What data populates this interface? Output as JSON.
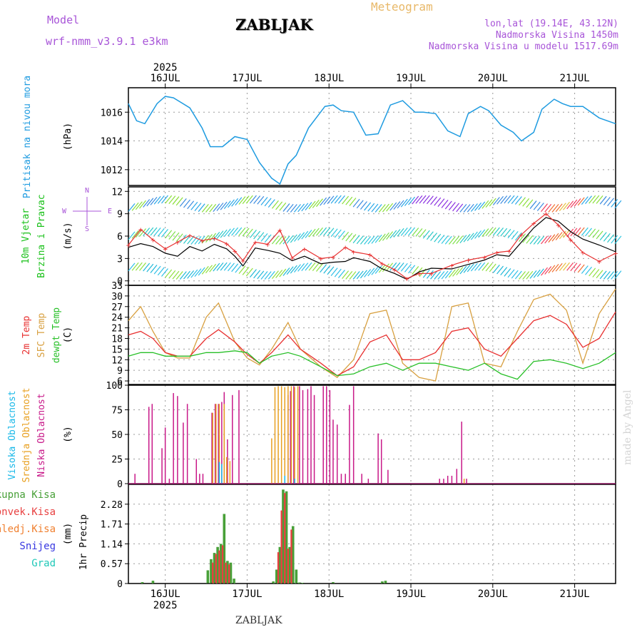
{
  "header": {
    "model_label": "Model",
    "model_name": "wrf-nmm_v3.9.1  e3km",
    "station": "ZABLJAK",
    "meteogram": "Meteogram",
    "lonlat": "lon,lat (19.14E, 43.12N)",
    "elevation": "Nadmorska Visina 1450m",
    "model_elevation": "Nadmorska Visina u modelu 1517.69m"
  },
  "footer": {
    "station": "ZABLJAK",
    "credit": "made by Angel"
  },
  "time_axis": {
    "year": "2025",
    "days": [
      "16JUL",
      "17JUL",
      "18JUL",
      "19JUL",
      "20JUL",
      "21JUL"
    ],
    "start_day": 15.55,
    "end_day": 21.5
  },
  "colors": {
    "pressure": "#1e9be0",
    "wind_speed": "#000000",
    "wind_gust": "#e83030",
    "t2m": "#e83030",
    "tsfc": "#d8a040",
    "dewpoint": "#28c028",
    "cloud_high": "#18b8e8",
    "cloud_mid": "#e8a020",
    "cloud_low": "#c81888",
    "precip_total": "#48a038",
    "precip_conv": "#e84040",
    "precip_frozen": "#f08030",
    "snow": "#3838e0",
    "graupel": "#20c8b8"
  },
  "chart_data": [
    {
      "type": "line",
      "id": "pressure",
      "ylabel": "Pritisak na nivou mora",
      "unit": "(hPa)",
      "ylim": [
        1010.9,
        1017.7
      ],
      "yticks": [
        1012,
        1014,
        1016
      ],
      "series": [
        {
          "name": "Pritisak na nivou mora",
          "x": [
            15.55,
            15.65,
            15.75,
            15.9,
            16.0,
            16.1,
            16.3,
            16.45,
            16.55,
            16.7,
            16.85,
            17.0,
            17.15,
            17.3,
            17.4,
            17.5,
            17.6,
            17.75,
            17.95,
            18.05,
            18.15,
            18.3,
            18.45,
            18.6,
            18.75,
            18.9,
            19.05,
            19.15,
            19.3,
            19.45,
            19.6,
            19.7,
            19.85,
            19.95,
            20.1,
            20.25,
            20.35,
            20.5,
            20.6,
            20.75,
            20.85,
            20.95,
            21.1,
            21.3,
            21.5
          ],
          "y": [
            1016.6,
            1015.4,
            1015.2,
            1016.6,
            1017.1,
            1017.0,
            1016.3,
            1014.9,
            1013.6,
            1013.6,
            1014.3,
            1014.1,
            1012.5,
            1011.4,
            1011.0,
            1012.4,
            1013.0,
            1014.9,
            1016.4,
            1016.5,
            1016.1,
            1016.0,
            1014.4,
            1014.5,
            1016.5,
            1016.8,
            1016.0,
            1016.0,
            1015.9,
            1014.7,
            1014.3,
            1015.9,
            1016.4,
            1016.1,
            1015.1,
            1014.6,
            1014.0,
            1014.6,
            1016.2,
            1016.9,
            1016.6,
            1016.4,
            1016.4,
            1015.6,
            1015.2
          ]
        }
      ]
    },
    {
      "type": "line",
      "id": "wind",
      "ylabel": [
        "10m Vjetar",
        "Brzina i Pravac"
      ],
      "unit": "(m/s)",
      "compass": {
        "north": "N",
        "west": "W",
        "east": "E",
        "south": "S"
      },
      "ylim": [
        -0.6,
        12.6
      ],
      "yticks": [
        0,
        3,
        6,
        9,
        12
      ],
      "series": [
        {
          "name": "speed",
          "x": [
            15.55,
            15.7,
            15.85,
            16.0,
            16.15,
            16.3,
            16.45,
            16.6,
            16.75,
            16.85,
            16.95,
            17.1,
            17.25,
            17.4,
            17.55,
            17.7,
            17.9,
            18.05,
            18.2,
            18.3,
            18.5,
            18.65,
            18.8,
            18.95,
            19.1,
            19.25,
            19.5,
            19.7,
            19.9,
            20.05,
            20.2,
            20.35,
            20.5,
            20.65,
            20.8,
            20.95,
            21.1,
            21.3,
            21.5
          ],
          "y": [
            4.5,
            5.0,
            4.6,
            3.7,
            3.3,
            4.6,
            4.0,
            4.9,
            4.3,
            3.3,
            2.0,
            4.4,
            4.1,
            3.7,
            2.7,
            3.3,
            2.3,
            2.5,
            2.6,
            3.1,
            2.6,
            1.6,
            1.0,
            0.2,
            1.2,
            1.7,
            1.6,
            2.2,
            2.8,
            3.5,
            3.3,
            5.2,
            7.1,
            8.5,
            8.0,
            6.6,
            5.6,
            4.8,
            3.9
          ]
        },
        {
          "name": "gust",
          "x": [
            15.55,
            15.7,
            15.85,
            16.0,
            16.15,
            16.3,
            16.45,
            16.6,
            16.75,
            16.85,
            16.95,
            17.1,
            17.25,
            17.4,
            17.55,
            17.7,
            17.9,
            18.05,
            18.2,
            18.3,
            18.5,
            18.65,
            18.8,
            18.95,
            19.1,
            19.25,
            19.5,
            19.7,
            19.9,
            20.05,
            20.2,
            20.35,
            20.5,
            20.65,
            20.8,
            20.95,
            21.1,
            21.3,
            21.5
          ],
          "y": [
            4.8,
            6.9,
            5.5,
            4.3,
            5.2,
            6.1,
            5.4,
            5.7,
            5.0,
            4.0,
            2.7,
            5.2,
            4.9,
            6.8,
            3.1,
            4.3,
            3.0,
            3.2,
            4.5,
            3.9,
            3.5,
            2.3,
            1.5,
            0.3,
            1.0,
            1.0,
            2.1,
            2.8,
            3.2,
            3.8,
            4.0,
            6.2,
            7.7,
            9.0,
            7.5,
            5.5,
            3.8,
            2.6,
            3.7
          ]
        }
      ]
    },
    {
      "type": "line",
      "id": "temperature",
      "ylabel": [
        "2m Temp",
        "SFC Temp",
        "dewpt Temp"
      ],
      "unit": "(C)",
      "ylim": [
        5,
        33
      ],
      "yticks": [
        6,
        9,
        12,
        15,
        18,
        21,
        24,
        27,
        30,
        33
      ],
      "series": [
        {
          "name": "2m Temp",
          "x": [
            15.55,
            15.7,
            15.85,
            16.0,
            16.15,
            16.3,
            16.5,
            16.65,
            16.85,
            17.0,
            17.15,
            17.3,
            17.5,
            17.65,
            17.9,
            18.1,
            18.3,
            18.5,
            18.7,
            18.9,
            19.1,
            19.3,
            19.5,
            19.7,
            19.9,
            20.1,
            20.3,
            20.5,
            20.7,
            20.9,
            21.1,
            21.3,
            21.5
          ],
          "y": [
            19,
            20,
            18,
            14,
            13,
            13,
            18,
            20.5,
            17,
            13.5,
            11,
            14,
            19,
            15,
            11,
            7.5,
            10,
            17,
            19,
            12,
            12,
            14,
            20,
            21,
            15,
            13,
            18,
            23,
            24.5,
            22,
            15.5,
            18,
            25.5
          ]
        },
        {
          "name": "SFC Temp",
          "x": [
            15.55,
            15.7,
            15.85,
            16.0,
            16.15,
            16.3,
            16.5,
            16.65,
            16.85,
            17.0,
            17.15,
            17.3,
            17.5,
            17.65,
            17.9,
            18.1,
            18.3,
            18.5,
            18.7,
            18.9,
            19.1,
            19.3,
            19.5,
            19.7,
            19.9,
            20.1,
            20.3,
            20.5,
            20.7,
            20.9,
            21.1,
            21.3,
            21.5
          ],
          "y": [
            23,
            27,
            20,
            14,
            12.5,
            12.5,
            24,
            28,
            17,
            12.5,
            10.5,
            15,
            22.5,
            15,
            10,
            7,
            12,
            25,
            26,
            11,
            7,
            6,
            27,
            28,
            11,
            10,
            20,
            29,
            30.5,
            26,
            11,
            25,
            32
          ]
        },
        {
          "name": "dewpt Temp",
          "x": [
            15.55,
            15.7,
            15.85,
            16.0,
            16.15,
            16.3,
            16.5,
            16.65,
            16.85,
            17.0,
            17.15,
            17.3,
            17.5,
            17.65,
            17.9,
            18.1,
            18.3,
            18.5,
            18.7,
            18.9,
            19.1,
            19.3,
            19.5,
            19.7,
            19.9,
            20.1,
            20.3,
            20.5,
            20.7,
            20.9,
            21.1,
            21.3,
            21.5
          ],
          "y": [
            13,
            14,
            14,
            13,
            13,
            13,
            14,
            14,
            14.5,
            14,
            11,
            13,
            14,
            13,
            10,
            7.5,
            8,
            10,
            11,
            9,
            11,
            11,
            10,
            9,
            11,
            8,
            6.5,
            11.5,
            12,
            11,
            9.5,
            11,
            14
          ]
        }
      ]
    },
    {
      "type": "bar",
      "id": "clouds",
      "ylabel": [
        "Visoka Oblacnost",
        "Srednja Oblacnost",
        "Niska Oblacnost"
      ],
      "unit": "(%)",
      "ylim": [
        0,
        100
      ],
      "yticks": [
        0,
        25,
        50,
        75,
        100
      ],
      "series": [
        {
          "name": "Niska Oblacnost",
          "x": [
            15.63,
            15.8,
            15.84,
            15.96,
            16.0,
            16.05,
            16.1,
            16.15,
            16.22,
            16.27,
            16.38,
            16.42,
            16.46,
            16.57,
            16.61,
            16.65,
            16.69,
            16.72,
            16.76,
            16.82,
            16.9,
            17.5,
            17.53,
            17.57,
            17.64,
            17.68,
            17.74,
            17.78,
            17.82,
            17.93,
            17.97,
            18.01,
            18.05,
            18.1,
            18.15,
            18.2,
            18.25,
            18.3,
            18.4,
            18.48,
            18.6,
            18.64,
            18.72,
            19.35,
            19.4,
            19.45,
            19.5,
            19.56,
            19.62,
            19.68
          ],
          "y": [
            10,
            78,
            81,
            36,
            57,
            5,
            92,
            89,
            62,
            81,
            25,
            10,
            10,
            72,
            81,
            81,
            83,
            93,
            45,
            90,
            95,
            90,
            94,
            99,
            99,
            95,
            96,
            99,
            90,
            99,
            99,
            95,
            65,
            60,
            10,
            10,
            80,
            99,
            10,
            5,
            51,
            45,
            14,
            5,
            5,
            8,
            8,
            15,
            63,
            5
          ]
        },
        {
          "name": "Srednja Oblacnost",
          "x": [
            16.58,
            16.62,
            16.66,
            16.72,
            16.75,
            16.79,
            17.3,
            17.34,
            17.38,
            17.42,
            17.46,
            17.5,
            17.54,
            17.58,
            17.62,
            19.65
          ],
          "y": [
            72,
            81,
            81,
            81,
            27,
            23,
            46,
            98,
            99,
            99,
            98,
            99,
            99,
            98,
            99,
            5
          ]
        },
        {
          "name": "Visoka Oblacnost",
          "x": [
            16.66,
            16.69,
            17.46,
            17.58
          ],
          "y": [
            22,
            20,
            8,
            5
          ]
        }
      ]
    },
    {
      "type": "bar",
      "id": "precip",
      "ylabel": "1hr Precip",
      "unit": "(mm)",
      "ylim": [
        0,
        2.85
      ],
      "yticks": [
        0,
        0.57,
        1.14,
        1.71,
        2.28
      ],
      "legend": [
        "Ukupna Kisa",
        "Konvek.Kisa",
        "Zaledj.Kisa",
        "Snijeg",
        "Grad"
      ],
      "series": [
        {
          "name": "Ukupna Kisa",
          "x": [
            15.72,
            15.85,
            16.52,
            16.56,
            16.6,
            16.64,
            16.68,
            16.72,
            16.76,
            16.8,
            16.84,
            17.32,
            17.36,
            17.4,
            17.44,
            17.48,
            17.52,
            17.56,
            17.6,
            17.64,
            17.68,
            18.05,
            18.65,
            18.69
          ],
          "y": [
            0.04,
            0.08,
            0.38,
            0.7,
            0.88,
            1.05,
            1.14,
            2.0,
            0.65,
            0.6,
            0.14,
            0.06,
            0.4,
            1.05,
            2.7,
            2.65,
            1.05,
            1.65,
            0.4,
            0.03,
            0.02,
            0.04,
            0.06,
            0.08
          ]
        },
        {
          "name": "Konvek.Kisa",
          "x": [
            16.58,
            16.62,
            16.66,
            16.7,
            16.74,
            16.78,
            17.38,
            17.42,
            17.46,
            17.5,
            17.54
          ],
          "y": [
            0.6,
            0.85,
            0.95,
            1.1,
            0.6,
            0.55,
            0.9,
            2.1,
            2.6,
            1.0,
            1.55
          ]
        }
      ]
    }
  ]
}
